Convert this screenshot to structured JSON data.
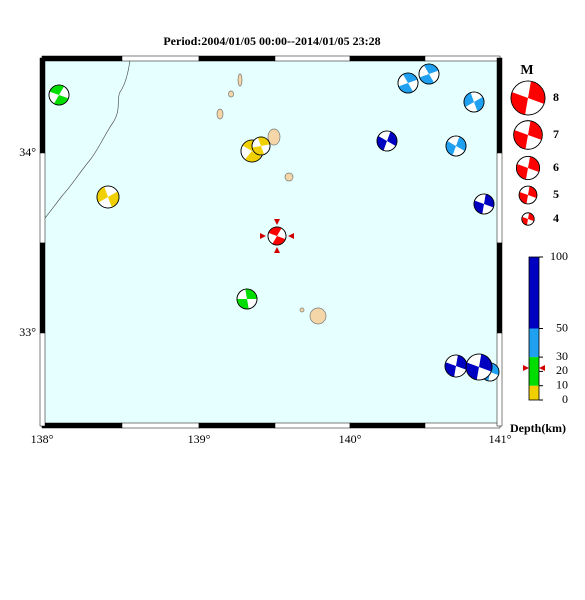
{
  "title": "Period:2004/01/05 00:00--2014/01/05 23:28",
  "x_labels": [
    "138°",
    "139°",
    "140°",
    "141°"
  ],
  "y_labels": [
    "34°",
    "33°"
  ],
  "legend": {
    "title": "M",
    "magnitudes": [
      8,
      7,
      6,
      5,
      4
    ]
  },
  "depth_scale": {
    "label": "Depth(km)",
    "lim": [
      0,
      100
    ],
    "ticks": [
      100,
      50,
      30,
      20,
      10,
      0
    ]
  }
}
